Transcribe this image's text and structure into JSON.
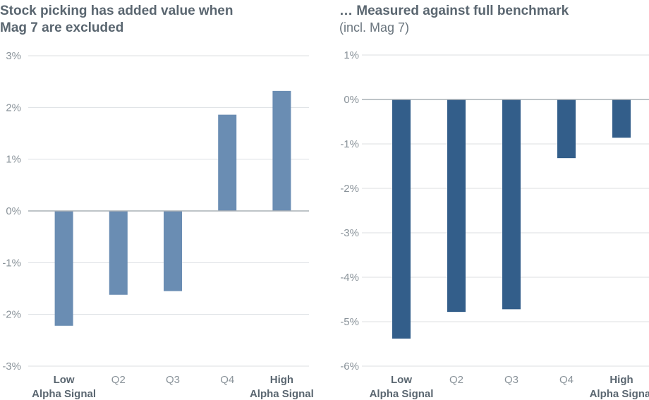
{
  "chart_data": [
    {
      "type": "bar",
      "title": "Stock picking has added value when Mag 7 are excluded",
      "title_lines": [
        "Stock picking has added value when",
        "Mag 7 are excluded"
      ],
      "subtitle": "",
      "categories": [
        "Low Alpha Signal",
        "Q2",
        "Q3",
        "Q4",
        "High Alpha Signal"
      ],
      "category_lines": [
        [
          "Low",
          "Alpha Signal"
        ],
        [
          "Q2"
        ],
        [
          "Q3"
        ],
        [
          "Q4"
        ],
        [
          "High",
          "Alpha Signal"
        ]
      ],
      "category_bold": [
        true,
        false,
        false,
        false,
        true
      ],
      "values": [
        -2.22,
        -1.62,
        -1.55,
        1.86,
        2.32
      ],
      "ylim": [
        -3,
        3
      ],
      "yticks": [
        3,
        2,
        1,
        0,
        -1,
        -2,
        -3
      ],
      "ytick_labels": [
        "3%",
        "2%",
        "1%",
        "0%",
        "-1%",
        "-2%",
        "-3%"
      ],
      "xlabel": "",
      "ylabel": "",
      "bar_color": "#6a8db3",
      "grid": true
    },
    {
      "type": "bar",
      "title": "… Measured against  full benchmark",
      "subtitle": "(incl. Mag 7)",
      "categories": [
        "Low Alpha Signal",
        "Q2",
        "Q3",
        "Q4",
        "High Alpha Signal"
      ],
      "category_lines": [
        [
          "Low",
          "Alpha Signal"
        ],
        [
          "Q2"
        ],
        [
          "Q3"
        ],
        [
          "Q4"
        ],
        [
          "High",
          "Alpha Signal"
        ]
      ],
      "category_bold": [
        true,
        false,
        false,
        false,
        true
      ],
      "values": [
        -5.38,
        -4.78,
        -4.72,
        -1.32,
        -0.86
      ],
      "ylim": [
        -6,
        1
      ],
      "yticks": [
        1,
        0,
        -1,
        -2,
        -3,
        -4,
        -5,
        -6
      ],
      "ytick_labels": [
        "1%",
        "0%",
        "-1%",
        "-2%",
        "-3%",
        "-4%",
        "-5%",
        "-6%"
      ],
      "xlabel": "",
      "ylabel": "",
      "bar_color": "#335e8a",
      "grid": true
    }
  ]
}
